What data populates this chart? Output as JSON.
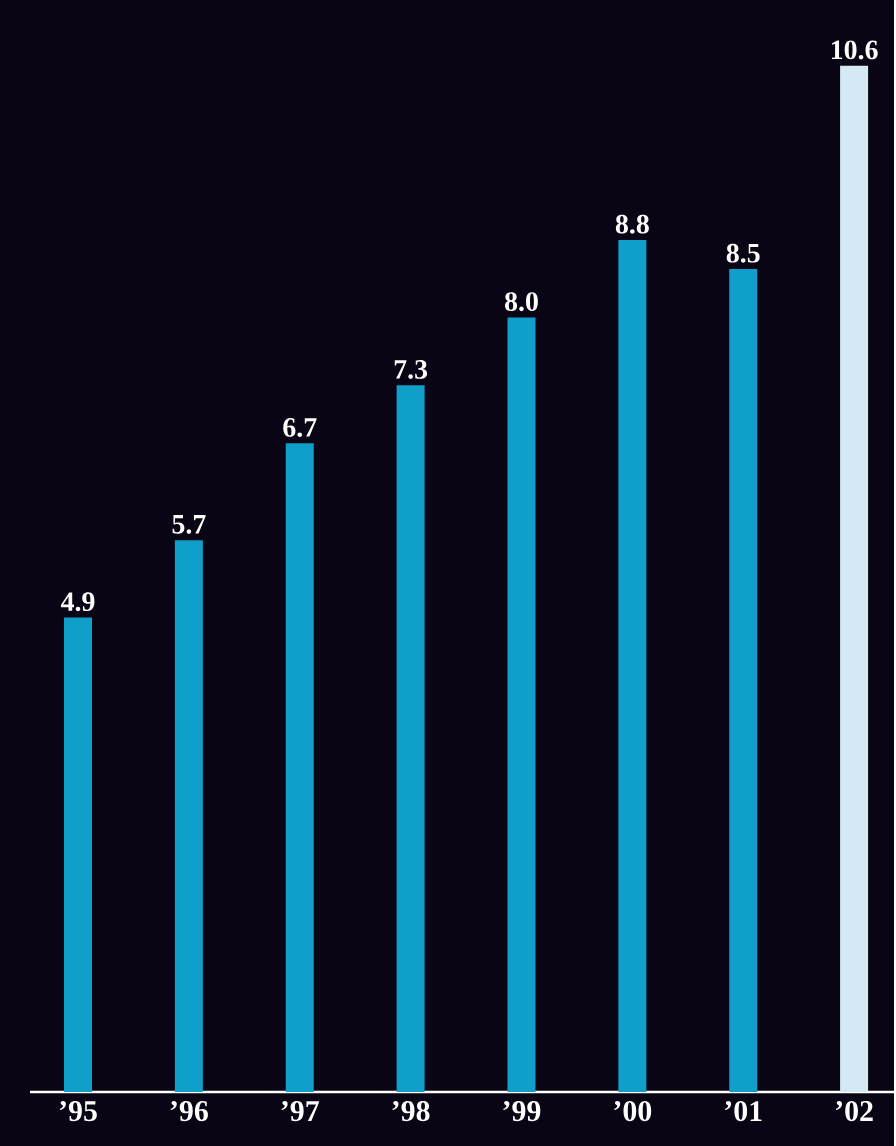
{
  "chart_data": {
    "type": "bar",
    "categories": [
      "’95",
      "’96",
      "’97",
      "’98",
      "’99",
      "’00",
      "’01",
      "’02"
    ],
    "values": [
      4.9,
      5.7,
      6.7,
      7.3,
      8.0,
      8.8,
      8.5,
      10.6
    ],
    "colors": [
      "#0f9fca",
      "#0f9fca",
      "#0f9fca",
      "#0f9fca",
      "#0f9fca",
      "#0f9fca",
      "#0f9fca",
      "#d4e9f3"
    ],
    "ylim": [
      0,
      11.28
    ],
    "value_labels": [
      "4.9",
      "5.7",
      "6.7",
      "7.3",
      "8.0",
      "8.8",
      "8.5",
      "10.6"
    ]
  }
}
